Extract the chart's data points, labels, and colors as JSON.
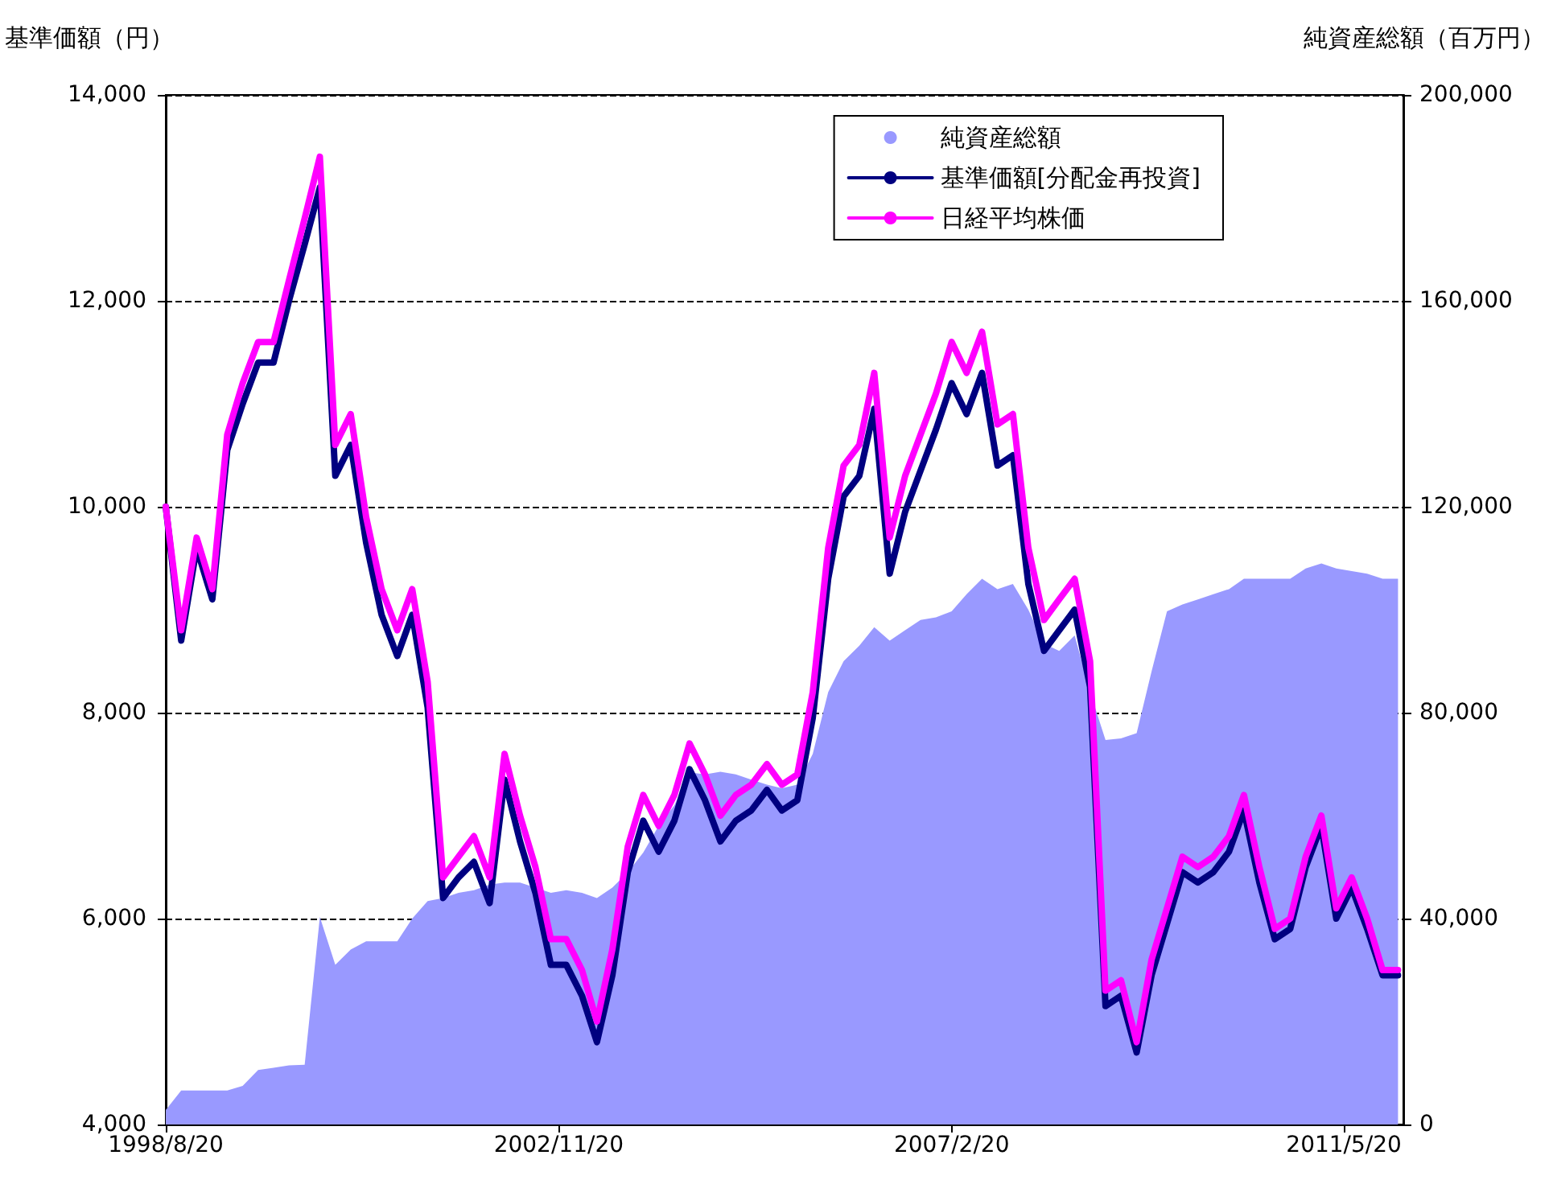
{
  "chart_data": {
    "type": "line",
    "ylabel": "基準価額（円）",
    "y2label": "純資産総額（百万円）",
    "x": [
      "1998-08-20",
      "1998-10-20",
      "1998-12-20",
      "1999-02-20",
      "1999-04-20",
      "1999-06-20",
      "1999-08-20",
      "1999-10-20",
      "1999-12-20",
      "2000-02-20",
      "2000-04-20",
      "2000-06-20",
      "2000-08-20",
      "2000-10-20",
      "2000-12-20",
      "2001-02-20",
      "2001-04-20",
      "2001-06-20",
      "2001-08-20",
      "2001-10-20",
      "2001-12-20",
      "2002-02-20",
      "2002-04-20",
      "2002-06-20",
      "2002-08-20",
      "2002-10-20",
      "2002-12-20",
      "2003-02-20",
      "2003-04-20",
      "2003-06-20",
      "2003-08-20",
      "2003-10-20",
      "2003-12-20",
      "2004-02-20",
      "2004-04-20",
      "2004-06-20",
      "2004-08-20",
      "2004-10-20",
      "2004-12-20",
      "2005-02-20",
      "2005-04-20",
      "2005-06-20",
      "2005-08-20",
      "2005-10-20",
      "2005-12-20",
      "2006-02-20",
      "2006-04-20",
      "2006-06-20",
      "2006-08-20",
      "2006-10-20",
      "2006-12-20",
      "2007-02-20",
      "2007-04-20",
      "2007-06-20",
      "2007-08-20",
      "2007-10-20",
      "2007-12-20",
      "2008-02-20",
      "2008-04-20",
      "2008-06-20",
      "2008-08-20",
      "2008-10-20",
      "2008-12-20",
      "2009-02-20",
      "2009-04-20",
      "2009-06-20",
      "2009-08-20",
      "2009-10-20",
      "2009-12-20",
      "2010-02-20",
      "2010-04-20",
      "2010-06-20",
      "2010-08-20",
      "2010-10-20",
      "2010-12-20",
      "2011-02-20",
      "2011-04-20",
      "2011-06-20",
      "2011-08-20",
      "2011-10-20",
      "2011-12-20"
    ],
    "series": [
      {
        "name": "純資産総額",
        "type": "area",
        "axis": "y2",
        "color": "#9999ff",
        "values": [
          2800,
          6600,
          6600,
          6600,
          6600,
          7500,
          10600,
          11000,
          11500,
          11600,
          40300,
          31000,
          34000,
          35600,
          35600,
          35600,
          40000,
          43400,
          44000,
          45000,
          45500,
          46600,
          47000,
          47000,
          46000,
          45000,
          45500,
          45000,
          44000,
          46000,
          49000,
          52800,
          58000,
          62000,
          68400,
          68000,
          68500,
          68000,
          67000,
          66000,
          65300,
          66000,
          72000,
          84000,
          90000,
          93000,
          96600,
          94000,
          96000,
          98000,
          98500,
          99700,
          103000,
          106000,
          104000,
          105000,
          100000,
          93400,
          92000,
          95000,
          84000,
          74700,
          75000,
          76000,
          88000,
          99700,
          101000,
          102000,
          103000,
          104000,
          106000,
          106000,
          106000,
          106000,
          108000,
          109000,
          108000,
          107500,
          107000,
          106000,
          106000
        ]
      },
      {
        "name": "基準価額[分配金再投資]",
        "color": "#000080",
        "values": [
          10000,
          8700,
          9600,
          9100,
          10550,
          11000,
          11400,
          11400,
          12000,
          12550,
          13100,
          10300,
          10600,
          9650,
          8950,
          8550,
          8950,
          8050,
          6200,
          6400,
          6550,
          6150,
          7350,
          6750,
          6250,
          5550,
          5550,
          5250,
          4800,
          5450,
          6450,
          6950,
          6650,
          6950,
          7450,
          7150,
          6750,
          6950,
          7050,
          7250,
          7050,
          7150,
          7950,
          9300,
          10100,
          10300,
          10950,
          9350,
          9950,
          10350,
          10750,
          11200,
          10900,
          11300,
          10400,
          10500,
          9250,
          8600,
          8800,
          9000,
          8250,
          5150,
          5250,
          4700,
          5450,
          5950,
          6450,
          6350,
          6450,
          6650,
          7050,
          6350,
          5800,
          5900,
          6500,
          6900,
          6000,
          6300,
          5900,
          5450,
          5450
        ]
      },
      {
        "name": "日経平均株価",
        "color": "#ff00ff",
        "values": [
          10000,
          8800,
          9700,
          9200,
          10700,
          11200,
          11600,
          11600,
          12200,
          12800,
          13400,
          10600,
          10900,
          9900,
          9200,
          8800,
          9200,
          8300,
          6400,
          6600,
          6800,
          6400,
          7600,
          7000,
          6500,
          5800,
          5800,
          5500,
          5000,
          5700,
          6700,
          7200,
          6900,
          7200,
          7700,
          7400,
          7000,
          7200,
          7300,
          7500,
          7300,
          7400,
          8200,
          9600,
          10400,
          10600,
          11300,
          9700,
          10300,
          10700,
          11100,
          11600,
          11300,
          11700,
          10800,
          10900,
          9600,
          8900,
          9100,
          9300,
          8500,
          5300,
          5400,
          4800,
          5600,
          6100,
          6600,
          6500,
          6600,
          6800,
          7200,
          6500,
          5900,
          6000,
          6600,
          7000,
          6100,
          6400,
          6000,
          5500,
          5500
        ]
      }
    ],
    "xlim": [
      "1998-08-20",
      "2012-01-10"
    ],
    "xticks": [
      {
        "value": "1998-08-20",
        "label": "1998/8/20"
      },
      {
        "value": "2002-11-20",
        "label": "2002/11/20"
      },
      {
        "value": "2007-02-20",
        "label": "2007/2/20"
      },
      {
        "value": "2011-05-20",
        "label": "2011/5/20"
      }
    ],
    "ylim": [
      4000,
      14000
    ],
    "yticks": [
      {
        "value": 4000,
        "label": "4,000"
      },
      {
        "value": 6000,
        "label": "6,000"
      },
      {
        "value": 8000,
        "label": "8,000"
      },
      {
        "value": 10000,
        "label": "10,000"
      },
      {
        "value": 12000,
        "label": "12,000"
      },
      {
        "value": 14000,
        "label": "14,000"
      }
    ],
    "y2lim": [
      0,
      200000
    ],
    "y2ticks": [
      {
        "value": 0,
        "label": "0"
      },
      {
        "value": 40000,
        "label": "40,000"
      },
      {
        "value": 80000,
        "label": "80,000"
      },
      {
        "value": 120000,
        "label": "120,000"
      },
      {
        "value": 160000,
        "label": "160,000"
      },
      {
        "value": 200000,
        "label": "200,000"
      }
    ],
    "grid": "y",
    "legend": "top right",
    "marker": "none",
    "line_style": "solid"
  }
}
